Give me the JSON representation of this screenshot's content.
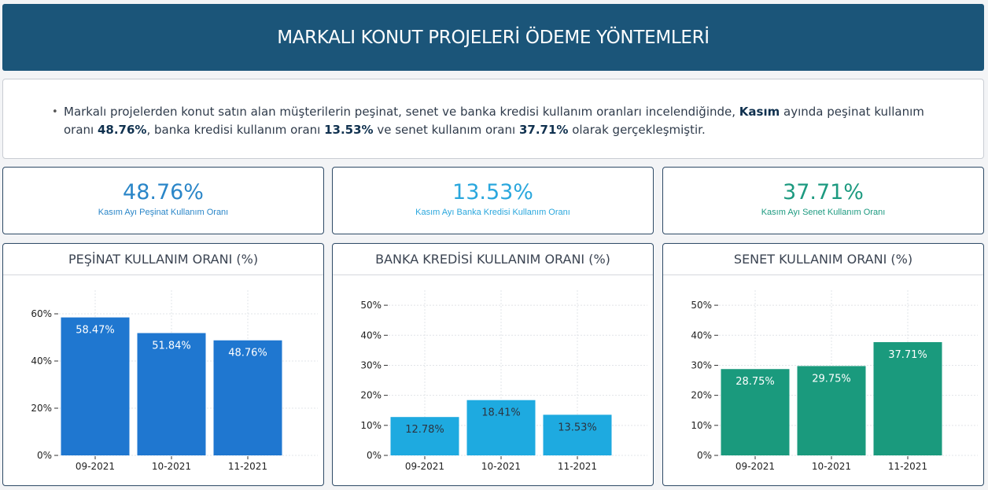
{
  "header": {
    "title": "MARKALI KONUT PROJELERİ ÖDEME YÖNTEMLERİ"
  },
  "summary": {
    "bullet": "•",
    "part1": "Markalı projelerden konut satın alan müşterilerin peşinat, senet ve banka kredisi kullanım oranları incelendiğinde, ",
    "month": "Kasım",
    "part2": " ayında peşinat kullanım oranı ",
    "pesinat": "48.76%",
    "part3": ", banka kredisi kullanım oranı ",
    "banka": "13.53%",
    "part4": " ve senet kullanım oranı ",
    "senet": "37.71%",
    "part5": " olarak gerçekleşmiştir."
  },
  "kpis": [
    {
      "value": "48.76%",
      "label": "Kasım Ayı Peşinat Kullanım Oranı",
      "color": "#2a86c8"
    },
    {
      "value": "13.53%",
      "label": "Kasım Ayı Banka Kredisi Kullanım Oranı",
      "color": "#2aa7dd"
    },
    {
      "value": "37.71%",
      "label": "Kasım Ayı Senet Kullanım Oranı",
      "color": "#1d9a80"
    }
  ],
  "chart_data": [
    {
      "type": "bar",
      "title": "PEŞİNAT KULLANIM ORANI (%)",
      "categories": [
        "09-2021",
        "10-2021",
        "11-2021"
      ],
      "values": [
        58.47,
        51.84,
        48.76
      ],
      "value_labels": [
        "58.47%",
        "51.84%",
        "48.76%"
      ],
      "ylim": [
        0,
        70
      ],
      "yticks": [
        0,
        20,
        40,
        60
      ],
      "ytick_labels": [
        "0%",
        "20%",
        "40%",
        "60%"
      ],
      "color": "#1f77d0",
      "grid": true
    },
    {
      "type": "bar",
      "title": "BANKA KREDİSİ KULLANIM ORANI (%)",
      "categories": [
        "09-2021",
        "10-2021",
        "11-2021"
      ],
      "values": [
        12.78,
        18.41,
        13.53
      ],
      "value_labels": [
        "12.78%",
        "18.41%",
        "13.53%"
      ],
      "ylim": [
        0,
        55
      ],
      "yticks": [
        0,
        10,
        20,
        30,
        40,
        50
      ],
      "ytick_labels": [
        "0%",
        "10%",
        "20%",
        "30%",
        "40%",
        "50%"
      ],
      "color": "#1eaae0",
      "grid": true
    },
    {
      "type": "bar",
      "title": "SENET KULLANIM ORANI (%)",
      "categories": [
        "09-2021",
        "10-2021",
        "11-2021"
      ],
      "values": [
        28.75,
        29.75,
        37.71
      ],
      "value_labels": [
        "28.75%",
        "29.75%",
        "37.71%"
      ],
      "ylim": [
        0,
        55
      ],
      "yticks": [
        0,
        10,
        20,
        30,
        40,
        50
      ],
      "ytick_labels": [
        "0%",
        "10%",
        "20%",
        "30%",
        "40%",
        "50%"
      ],
      "color": "#1a9a7d",
      "grid": true
    }
  ]
}
